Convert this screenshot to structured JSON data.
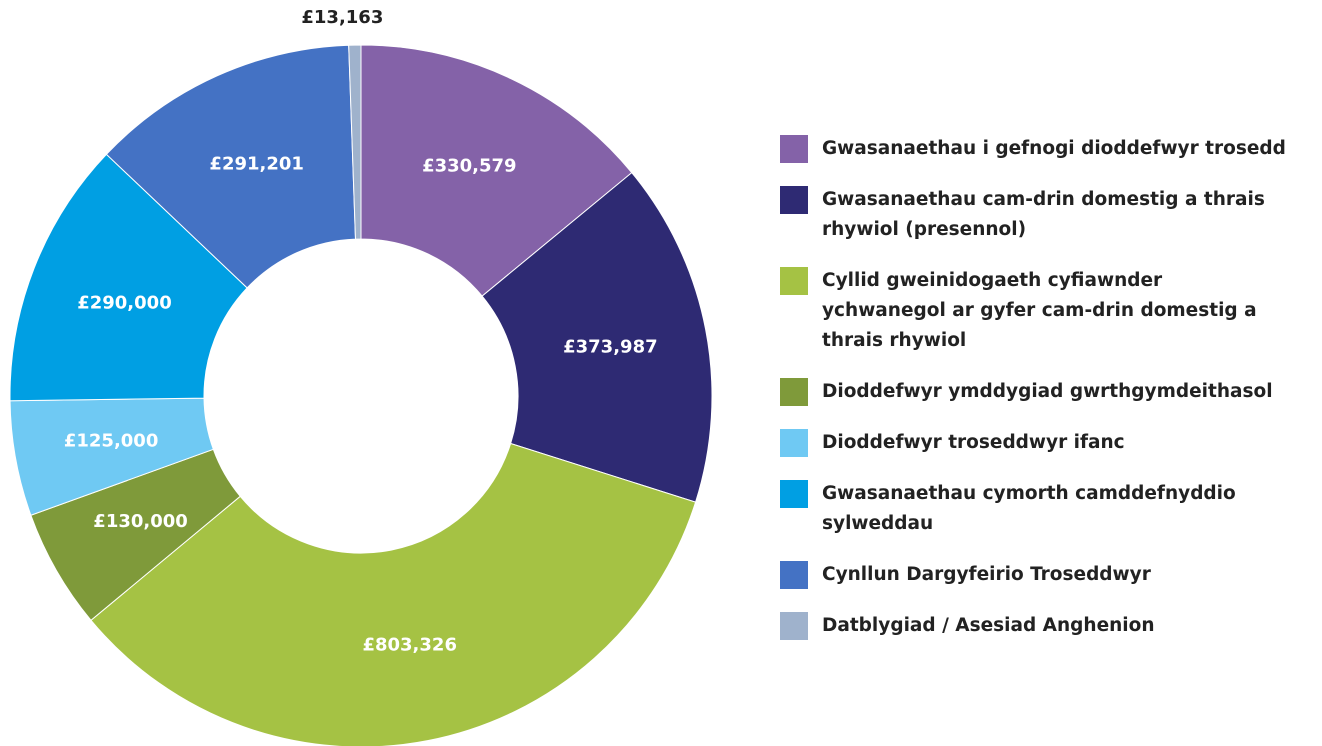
{
  "chart_data": {
    "type": "pie",
    "categories": [
      "Gwasanaethau i gefnogi dioddefwyr trosedd",
      "Gwasanaethau cam-drin domestig a thrais rhywiol (presennol)",
      "Cyllid gweinidogaeth cyfiawnder ychwanegol ar gyfer cam-drin domestig a thrais rhywiol",
      "Dioddefwyr ymddygiad gwrthgymdeithasol",
      "Dioddefwyr troseddwyr ifanc",
      "Gwasanaethau cymorth camddefnyddio sylweddau",
      "Cynllun Dargyfeirio Troseddwyr",
      "Datblygiad / Asesiad Anghenion"
    ],
    "values": [
      330579,
      373987,
      803326,
      130000,
      125000,
      290000,
      291201,
      13163
    ],
    "value_labels": [
      "£330,579",
      "£373,987",
      "£803,326",
      "£130,000",
      "£125,000",
      "£290,000",
      "£291,201",
      "£13,163"
    ],
    "colors": [
      "#8462a8",
      "#2e2a73",
      "#a5c244",
      "#7f9a3a",
      "#6fc9f3",
      "#009fe3",
      "#4472c4",
      "#9fb2cc"
    ],
    "legend": "right"
  }
}
